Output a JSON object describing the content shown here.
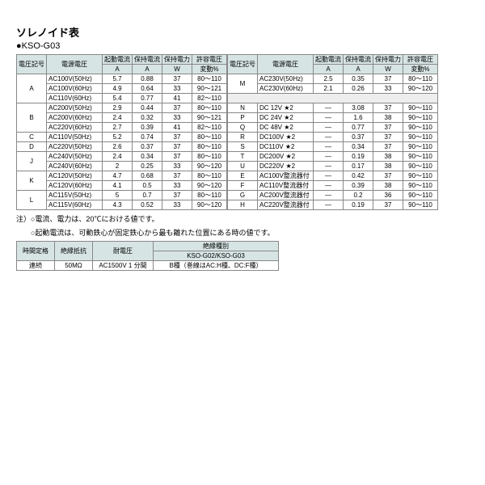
{
  "title": "ソレノイド表",
  "subtitle": "●KSO-G03",
  "headers": {
    "code": "電圧記号",
    "volt": "電源電圧",
    "startA_1": "起動電流",
    "startA_2": "A",
    "holdA_1": "保持電流",
    "holdA_2": "A",
    "holdW_1": "保持電力",
    "holdW_2": "W",
    "pct_1": "許容電圧",
    "pct_2": "変動%"
  },
  "left": [
    {
      "code": "A",
      "span": 3,
      "volt": "AC100V(50Hz)",
      "a": "5.7",
      "b": "0.88",
      "c": "37",
      "d": "80～110"
    },
    {
      "volt": "AC100V(60Hz)",
      "a": "4.9",
      "b": "0.64",
      "c": "33",
      "d": "90～121"
    },
    {
      "volt": "AC110V(60Hz)",
      "a": "5.4",
      "b": "0.77",
      "c": "41",
      "d": "82～110"
    },
    {
      "code": "B",
      "span": 3,
      "volt": "AC200V(50Hz)",
      "a": "2.9",
      "b": "0.44",
      "c": "37",
      "d": "80～110"
    },
    {
      "volt": "AC200V(60Hz)",
      "a": "2.4",
      "b": "0.32",
      "c": "33",
      "d": "90～121"
    },
    {
      "volt": "AC220V(60Hz)",
      "a": "2.7",
      "b": "0.39",
      "c": "41",
      "d": "82～110"
    },
    {
      "code": "C",
      "span": 1,
      "volt": "AC110V(50Hz)",
      "a": "5.2",
      "b": "0.74",
      "c": "37",
      "d": "80～110"
    },
    {
      "code": "D",
      "span": 1,
      "volt": "AC220V(50Hz)",
      "a": "2.6",
      "b": "0.37",
      "c": "37",
      "d": "80～110"
    },
    {
      "code": "J",
      "span": 2,
      "volt": "AC240V(50Hz)",
      "a": "2.4",
      "b": "0.34",
      "c": "37",
      "d": "80～110"
    },
    {
      "volt": "AC240V(60Hz)",
      "a": "2",
      "b": "0.25",
      "c": "33",
      "d": "90～120"
    },
    {
      "code": "K",
      "span": 2,
      "volt": "AC120V(50Hz)",
      "a": "4.7",
      "b": "0.68",
      "c": "37",
      "d": "80～110"
    },
    {
      "volt": "AC120V(60Hz)",
      "a": "4.1",
      "b": "0.5",
      "c": "33",
      "d": "90～120"
    },
    {
      "code": "L",
      "span": 2,
      "volt": "AC115V(50Hz)",
      "a": "5",
      "b": "0.7",
      "c": "37",
      "d": "80～110"
    },
    {
      "volt": "AC115V(60Hz)",
      "a": "4.3",
      "b": "0.52",
      "c": "33",
      "d": "90～120"
    }
  ],
  "right": [
    {
      "code": "M",
      "span": 2,
      "volt": "AC230V(50Hz)",
      "a": "2.5",
      "b": "0.35",
      "c": "37",
      "d": "80～110"
    },
    {
      "volt": "AC230V(60Hz)",
      "a": "2.1",
      "b": "0.26",
      "c": "33",
      "d": "90～120"
    },
    {
      "blank": true
    },
    {
      "code": "N",
      "span": 1,
      "volt": "DC 12V ★2",
      "a": "—",
      "b": "3.08",
      "c": "37",
      "d": "90～110"
    },
    {
      "code": "P",
      "span": 1,
      "volt": "DC 24V ★2",
      "a": "—",
      "b": "1.6",
      "c": "38",
      "d": "90～110"
    },
    {
      "code": "Q",
      "span": 1,
      "volt": "DC 48V ★2",
      "a": "—",
      "b": "0.77",
      "c": "37",
      "d": "90～110"
    },
    {
      "code": "R",
      "span": 1,
      "volt": "DC100V ★2",
      "a": "—",
      "b": "0.37",
      "c": "37",
      "d": "90～110"
    },
    {
      "code": "S",
      "span": 1,
      "volt": "DC110V ★2",
      "a": "—",
      "b": "0.34",
      "c": "37",
      "d": "90～110"
    },
    {
      "code": "T",
      "span": 1,
      "volt": "DC200V ★2",
      "a": "—",
      "b": "0.19",
      "c": "38",
      "d": "90～110"
    },
    {
      "code": "U",
      "span": 1,
      "volt": "DC220V ★2",
      "a": "—",
      "b": "0.17",
      "c": "38",
      "d": "90～110"
    },
    {
      "code": "E",
      "span": 1,
      "volt": "AC100V整流器付",
      "a": "—",
      "b": "0.42",
      "c": "37",
      "d": "90～110"
    },
    {
      "code": "F",
      "span": 1,
      "volt": "AC110V整流器付",
      "a": "—",
      "b": "0.39",
      "c": "38",
      "d": "90～110"
    },
    {
      "code": "G",
      "span": 1,
      "volt": "AC200V整流器付",
      "a": "—",
      "b": "0.2",
      "c": "36",
      "d": "90～110"
    },
    {
      "code": "H",
      "span": 1,
      "volt": "AC220V整流器付",
      "a": "—",
      "b": "0.19",
      "c": "37",
      "d": "90～110"
    }
  ],
  "note1": "注）○電流、電力は、20℃における値です。",
  "note2": "　　○起動電流は、可動鉄心が固定鉄心から最も離れた位置にある時の値です。",
  "small": {
    "h1": "時間定格",
    "h2": "絶縁抵抗",
    "h3": "耐電圧",
    "h4": "絶縁種別",
    "h5": "KSO-G02/KSO-G03",
    "r1": "連続",
    "r2": "50MΩ",
    "r3": "AC1500V 1 分間",
    "r4": "B種（巻線はAC:H種、DC:F種）"
  }
}
